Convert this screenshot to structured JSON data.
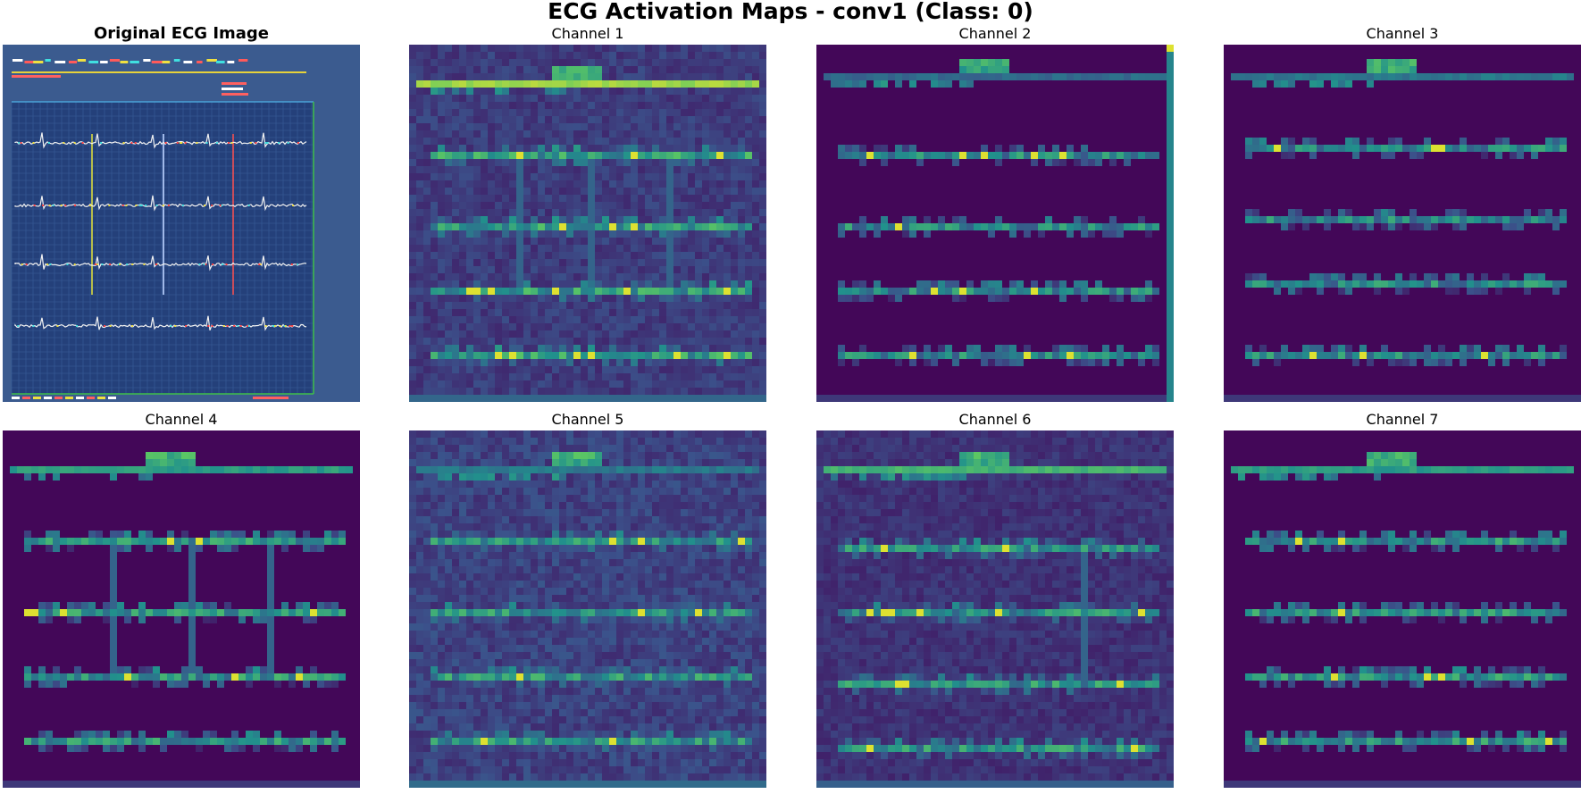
{
  "figure": {
    "title": "ECG Activation Maps - conv1 (Class: 0)"
  },
  "panels": [
    {
      "title": "Original ECG Image",
      "kind": "original"
    },
    {
      "title": "Channel 1",
      "kind": "activation",
      "channel": 1
    },
    {
      "title": "Channel 2",
      "kind": "activation",
      "channel": 2
    },
    {
      "title": "Channel 3",
      "kind": "activation",
      "channel": 3
    },
    {
      "title": "Channel 4",
      "kind": "activation",
      "channel": 4
    },
    {
      "title": "Channel 5",
      "kind": "activation",
      "channel": 5
    },
    {
      "title": "Channel 6",
      "kind": "activation",
      "channel": 6
    },
    {
      "title": "Channel 7",
      "kind": "activation",
      "channel": 7
    }
  ],
  "colormap": "viridis",
  "colors": {
    "viridis_low": "#440154",
    "viridis_mid": "#21918c",
    "viridis_high": "#fde725",
    "ecg_background": "#3b5b8f",
    "ecg_grid_border": "#4aa3d8"
  }
}
